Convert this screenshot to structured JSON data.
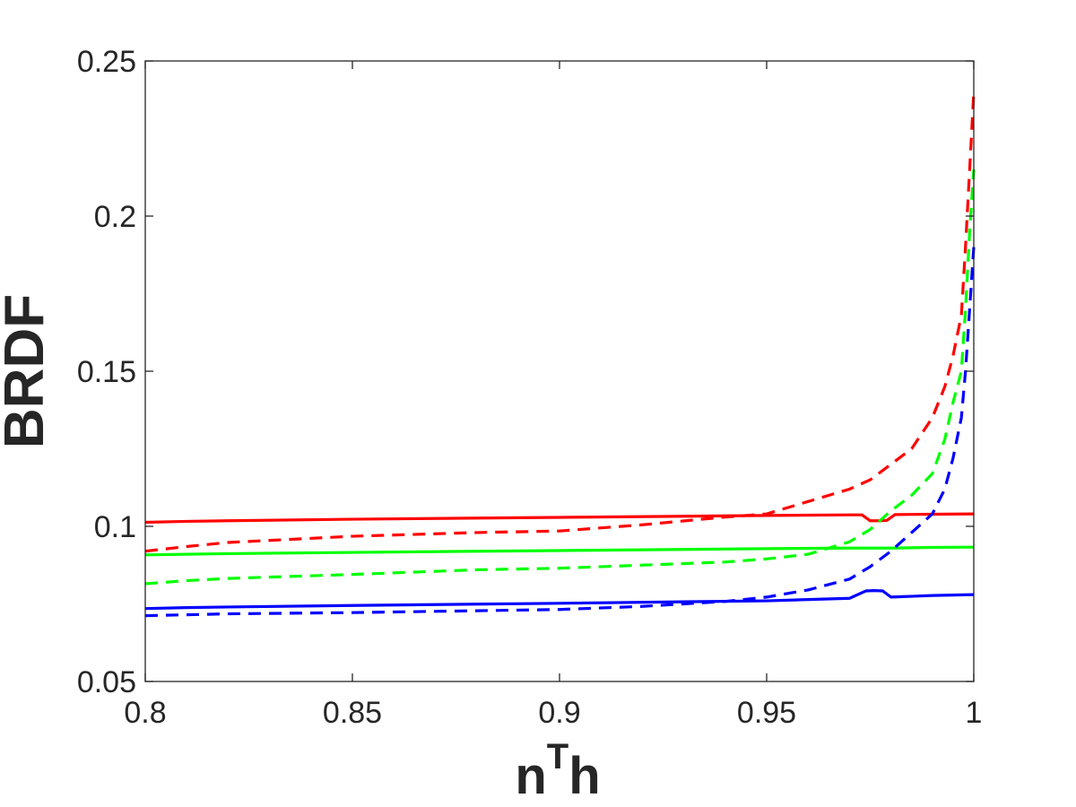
{
  "chart_data": {
    "type": "line",
    "xlabel": "n",
    "xlabel_superscript": "T",
    "xlabel_suffix": "h",
    "ylabel": "BRDF",
    "xlim": [
      0.8,
      1
    ],
    "ylim": [
      0.05,
      0.25
    ],
    "x_ticks": [
      0.8,
      0.85,
      0.9,
      0.95,
      1
    ],
    "x_tick_labels": [
      "0.8",
      "0.85",
      "0.9",
      "0.95",
      "1"
    ],
    "y_ticks": [
      0.05,
      0.1,
      0.15,
      0.2,
      0.25
    ],
    "y_tick_labels": [
      "0.05",
      "0.1",
      "0.15",
      "0.2",
      "0.25"
    ],
    "grid": false,
    "box": true,
    "series": [
      {
        "color": "#ff0000",
        "style": "solid",
        "x": [
          0.8,
          0.81,
          0.82,
          0.85,
          0.9,
          0.95,
          0.97,
          0.973,
          0.975,
          0.977,
          0.979,
          0.981,
          0.99,
          1.0
        ],
        "y": [
          0.1013,
          0.1016,
          0.1018,
          0.1023,
          0.1029,
          0.1035,
          0.1037,
          0.1037,
          0.1018,
          0.1018,
          0.1019,
          0.1038,
          0.1039,
          0.104
        ]
      },
      {
        "color": "#ff0000",
        "style": "dashed",
        "x": [
          0.8,
          0.81,
          0.82,
          0.85,
          0.88,
          0.9,
          0.92,
          0.94,
          0.95,
          0.96,
          0.97,
          0.975,
          0.98,
          0.985,
          0.99,
          0.993,
          0.995,
          0.997,
          0.998,
          0.999,
          1.0
        ],
        "y": [
          0.092,
          0.0935,
          0.0948,
          0.0968,
          0.098,
          0.0985,
          0.1005,
          0.103,
          0.104,
          0.108,
          0.112,
          0.115,
          0.12,
          0.125,
          0.135,
          0.145,
          0.155,
          0.168,
          0.19,
          0.215,
          0.24
        ]
      },
      {
        "color": "#00ff00",
        "style": "solid",
        "x": [
          0.8,
          0.81,
          0.82,
          0.85,
          0.9,
          0.95,
          0.97,
          0.98,
          0.99,
          1.0
        ],
        "y": [
          0.0908,
          0.091,
          0.0912,
          0.0916,
          0.0922,
          0.0928,
          0.093,
          0.093,
          0.0932,
          0.0933
        ]
      },
      {
        "color": "#00ff00",
        "style": "dashed",
        "x": [
          0.8,
          0.81,
          0.82,
          0.85,
          0.88,
          0.9,
          0.92,
          0.94,
          0.95,
          0.96,
          0.97,
          0.975,
          0.98,
          0.985,
          0.99,
          0.993,
          0.995,
          0.997,
          0.998,
          0.999,
          1.0
        ],
        "y": [
          0.0815,
          0.0825,
          0.0832,
          0.0845,
          0.086,
          0.0865,
          0.0875,
          0.0885,
          0.0895,
          0.091,
          0.095,
          0.099,
          0.105,
          0.11,
          0.117,
          0.128,
          0.14,
          0.15,
          0.17,
          0.195,
          0.215
        ]
      },
      {
        "color": "#0000ff",
        "style": "solid",
        "x": [
          0.8,
          0.81,
          0.82,
          0.85,
          0.9,
          0.95,
          0.97,
          0.974,
          0.976,
          0.978,
          0.98,
          0.99,
          1.0
        ],
        "y": [
          0.0735,
          0.0738,
          0.074,
          0.0745,
          0.0752,
          0.076,
          0.0768,
          0.0792,
          0.0793,
          0.0792,
          0.0772,
          0.0777,
          0.078
        ]
      },
      {
        "color": "#0000ff",
        "style": "dashed",
        "x": [
          0.8,
          0.81,
          0.82,
          0.85,
          0.88,
          0.9,
          0.92,
          0.94,
          0.95,
          0.96,
          0.97,
          0.975,
          0.98,
          0.985,
          0.99,
          0.993,
          0.995,
          0.997,
          0.998,
          0.999,
          1.0
        ],
        "y": [
          0.0712,
          0.0715,
          0.0718,
          0.0722,
          0.0728,
          0.0732,
          0.0742,
          0.0758,
          0.0772,
          0.0795,
          0.083,
          0.087,
          0.092,
          0.098,
          0.104,
          0.112,
          0.122,
          0.135,
          0.15,
          0.17,
          0.19
        ]
      }
    ]
  }
}
